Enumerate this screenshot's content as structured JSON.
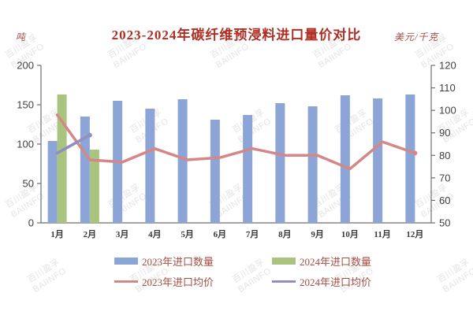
{
  "watermark": {
    "line1": "百川盈孚",
    "line2": "BAIINFO",
    "color": "#d2d2d2"
  },
  "chart_data": {
    "type": "bar",
    "subtype": "bar+line combo, dual axis",
    "title": "2023-2024年碳纤维预浸料进口量价对比",
    "categories": [
      "1月",
      "2月",
      "3月",
      "4月",
      "5月",
      "6月",
      "7月",
      "8月",
      "9月",
      "10月",
      "11月",
      "12月"
    ],
    "left_axis": {
      "label": "吨",
      "min": 0,
      "max": 200,
      "ticks": [
        0,
        50,
        100,
        150,
        200
      ]
    },
    "right_axis": {
      "label": "美元/千克",
      "min": 50,
      "max": 120,
      "ticks": [
        50,
        60,
        70,
        80,
        90,
        100,
        110,
        120
      ]
    },
    "grid": "off",
    "legend_position": "bottom",
    "series": [
      {
        "name": "2023年进口数量",
        "type": "bar",
        "axis": "left",
        "color": "#8da5d6",
        "values": [
          104,
          135,
          155,
          145,
          157,
          131,
          137,
          152,
          148,
          162,
          158,
          163
        ]
      },
      {
        "name": "2024年进口数量",
        "type": "bar",
        "axis": "left",
        "color": "#a9c47f",
        "values": [
          163,
          93
        ]
      },
      {
        "name": "2023年进口均价",
        "type": "line",
        "axis": "right",
        "color": "#d48786",
        "values": [
          98,
          78,
          77,
          83,
          78,
          79,
          83,
          80,
          80,
          74,
          86,
          81
        ]
      },
      {
        "name": "2024年进口均价",
        "type": "line",
        "axis": "right",
        "color": "#8f8fc0",
        "values": [
          81,
          89
        ]
      }
    ],
    "legend": [
      {
        "label": "2023年进口数量",
        "shape": "rect",
        "color": "#8da5d6"
      },
      {
        "label": "2024年进口数量",
        "shape": "rect",
        "color": "#a9c47f"
      },
      {
        "label": "2023年进口均价",
        "shape": "line",
        "color": "#d48786"
      },
      {
        "label": "2024年进口均价",
        "shape": "line",
        "color": "#8f8fc0"
      }
    ],
    "axis_text_color": "#404040",
    "axis_line_color": "#6e6e6e"
  }
}
